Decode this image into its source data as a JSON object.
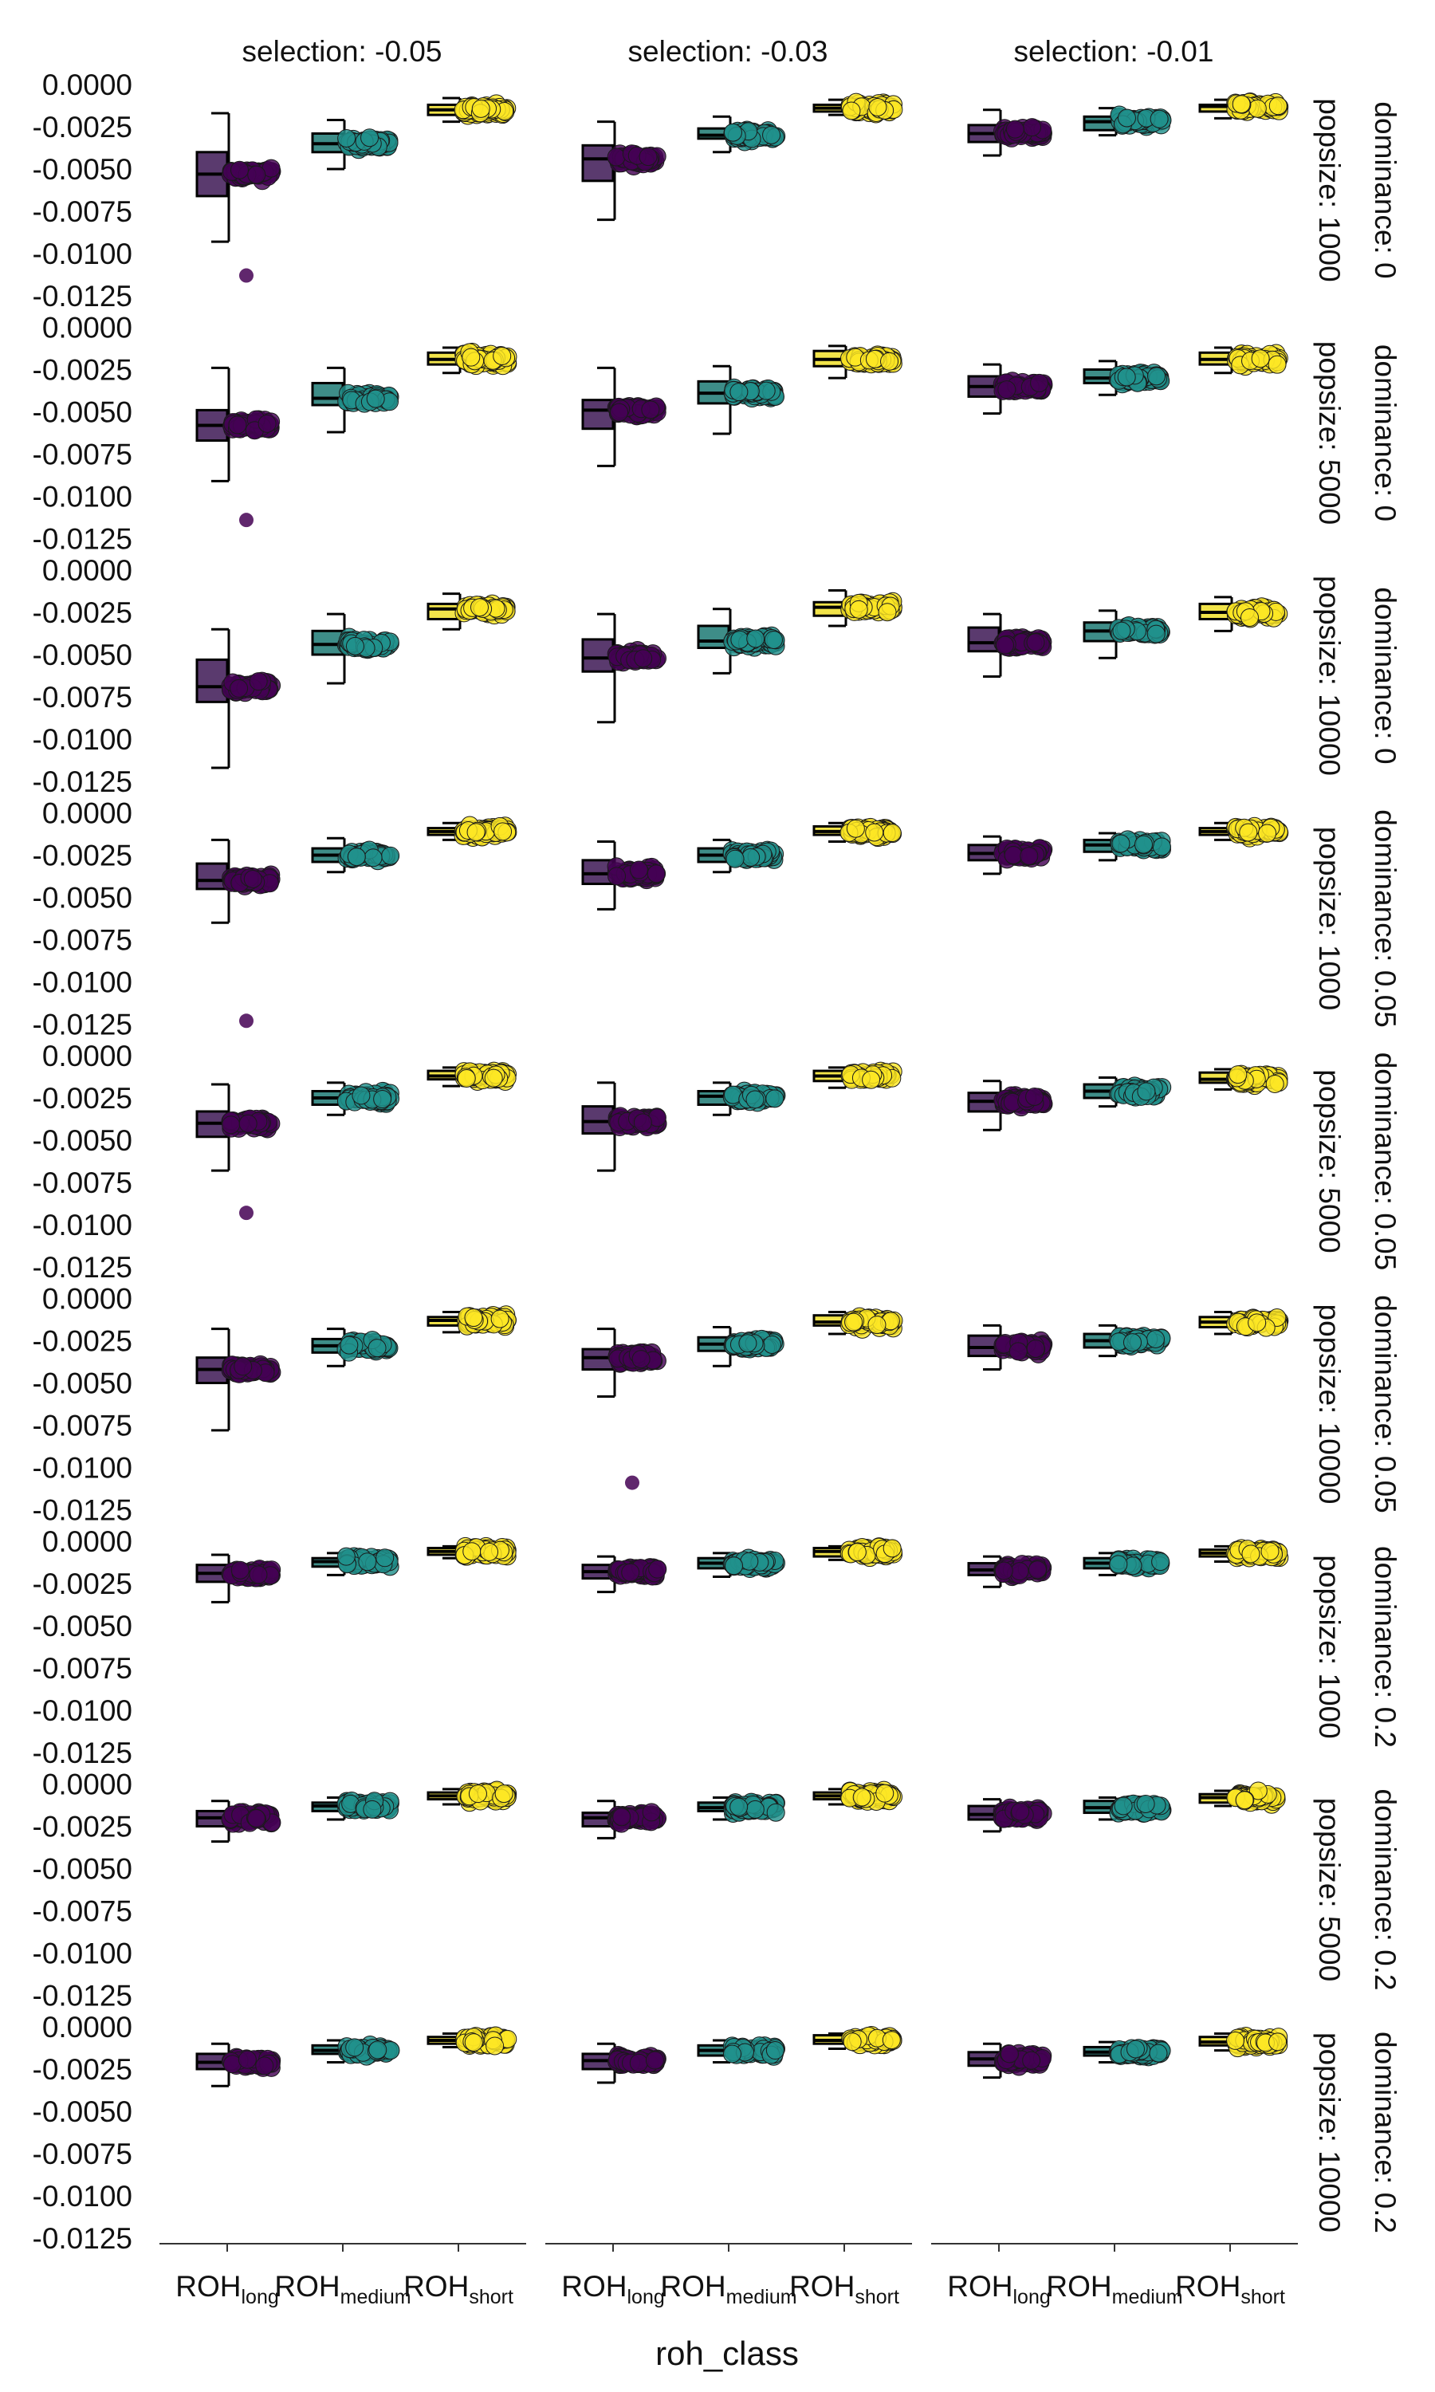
{
  "chart_data": {
    "type": "box-jitter",
    "xlabel": "roh_class",
    "ylabel": "",
    "ylim": [
      -0.0125,
      0.0
    ],
    "y_ticks": [
      "0.0000",
      "-0.0025",
      "-0.0050",
      "-0.0075",
      "-0.0100",
      "-0.0125"
    ],
    "y_tick_values": [
      0.0,
      -0.0025,
      -0.005,
      -0.0075,
      -0.01,
      -0.0125
    ],
    "categories": [
      {
        "main": "ROH",
        "sub": "long"
      },
      {
        "main": "ROH",
        "sub": "medium"
      },
      {
        "main": "ROH",
        "sub": "short"
      }
    ],
    "category_colors": [
      "#440154",
      "#21918c",
      "#fde725"
    ],
    "box_colors": [
      "#5a3a6e",
      "#3e8d88",
      "#f2e44a"
    ],
    "columns": [
      "selection: -0.05",
      "selection: -0.03",
      "selection: -0.01"
    ],
    "rows": [
      {
        "popsize": "popsize: 1000",
        "dominance": "dominance: 0"
      },
      {
        "popsize": "popsize: 5000",
        "dominance": "dominance: 0"
      },
      {
        "popsize": "popsize: 10000",
        "dominance": "dominance: 0"
      },
      {
        "popsize": "popsize: 1000",
        "dominance": "dominance: 0.05"
      },
      {
        "popsize": "popsize: 5000",
        "dominance": "dominance: 0.05"
      },
      {
        "popsize": "popsize: 10000",
        "dominance": "dominance: 0.05"
      },
      {
        "popsize": "popsize: 1000",
        "dominance": "dominance: 0.2"
      },
      {
        "popsize": "popsize: 5000",
        "dominance": "dominance: 0.2"
      },
      {
        "popsize": "popsize: 10000",
        "dominance": "dominance: 0.2"
      }
    ],
    "panels": [
      [
        [
          {
            "q1": -0.0066,
            "med": -0.0053,
            "q3": -0.004,
            "lo": -0.0093,
            "hi": -0.0017,
            "out": [
              -0.0113
            ]
          },
          {
            "q1": -0.004,
            "med": -0.0035,
            "q3": -0.0029,
            "lo": -0.005,
            "hi": -0.0021,
            "out": []
          },
          {
            "q1": -0.0018,
            "med": -0.0015,
            "q3": -0.0012,
            "lo": -0.0022,
            "hi": -0.0008,
            "out": []
          }
        ],
        [
          {
            "q1": -0.0057,
            "med": -0.0044,
            "q3": -0.0036,
            "lo": -0.008,
            "hi": -0.0022,
            "out": []
          },
          {
            "q1": -0.0032,
            "med": -0.003,
            "q3": -0.0026,
            "lo": -0.004,
            "hi": -0.0019,
            "out": []
          },
          {
            "q1": -0.0016,
            "med": -0.0014,
            "q3": -0.0012,
            "lo": -0.0018,
            "hi": -0.0009,
            "out": []
          }
        ],
        [
          {
            "q1": -0.0034,
            "med": -0.0029,
            "q3": -0.0024,
            "lo": -0.0042,
            "hi": -0.0015,
            "out": []
          },
          {
            "q1": -0.0027,
            "med": -0.0022,
            "q3": -0.0019,
            "lo": -0.003,
            "hi": -0.0014,
            "out": []
          },
          {
            "q1": -0.0016,
            "med": -0.0013,
            "q3": -0.0012,
            "lo": -0.002,
            "hi": -0.0009,
            "out": []
          }
        ]
      ],
      [
        [
          {
            "q1": -0.0067,
            "med": -0.0058,
            "q3": -0.0049,
            "lo": -0.0091,
            "hi": -0.0024,
            "out": [
              -0.0114
            ]
          },
          {
            "q1": -0.0046,
            "med": -0.0042,
            "q3": -0.0033,
            "lo": -0.0062,
            "hi": -0.0024,
            "out": []
          },
          {
            "q1": -0.0022,
            "med": -0.0019,
            "q3": -0.0015,
            "lo": -0.0027,
            "hi": -0.0012,
            "out": []
          }
        ],
        [
          {
            "q1": -0.006,
            "med": -0.0049,
            "q3": -0.0043,
            "lo": -0.0082,
            "hi": -0.0024,
            "out": []
          },
          {
            "q1": -0.0045,
            "med": -0.0039,
            "q3": -0.0032,
            "lo": -0.0063,
            "hi": -0.0023,
            "out": []
          },
          {
            "q1": -0.0023,
            "med": -0.0019,
            "q3": -0.0014,
            "lo": -0.003,
            "hi": -0.0011,
            "out": []
          }
        ],
        [
          {
            "q1": -0.0041,
            "med": -0.0035,
            "q3": -0.0029,
            "lo": -0.0051,
            "hi": -0.0022,
            "out": []
          },
          {
            "q1": -0.0033,
            "med": -0.003,
            "q3": -0.0025,
            "lo": -0.004,
            "hi": -0.002,
            "out": []
          },
          {
            "q1": -0.0022,
            "med": -0.0019,
            "q3": -0.0015,
            "lo": -0.0027,
            "hi": -0.0012,
            "out": []
          }
        ]
      ],
      [
        [
          {
            "q1": -0.0078,
            "med": -0.0069,
            "q3": -0.0053,
            "lo": -0.0117,
            "hi": -0.0035,
            "out": []
          },
          {
            "q1": -0.005,
            "med": -0.0044,
            "q3": -0.0036,
            "lo": -0.0067,
            "hi": -0.0026,
            "out": []
          },
          {
            "q1": -0.0029,
            "med": -0.0023,
            "q3": -0.002,
            "lo": -0.0035,
            "hi": -0.0014,
            "out": []
          }
        ],
        [
          {
            "q1": -0.006,
            "med": -0.0052,
            "q3": -0.0041,
            "lo": -0.009,
            "hi": -0.0026,
            "out": []
          },
          {
            "q1": -0.0046,
            "med": -0.0042,
            "q3": -0.0033,
            "lo": -0.0061,
            "hi": -0.0023,
            "out": []
          },
          {
            "q1": -0.0027,
            "med": -0.0022,
            "q3": -0.0019,
            "lo": -0.0033,
            "hi": -0.0012,
            "out": []
          }
        ],
        [
          {
            "q1": -0.0048,
            "med": -0.0043,
            "q3": -0.0034,
            "lo": -0.0063,
            "hi": -0.0026,
            "out": []
          },
          {
            "q1": -0.0042,
            "med": -0.0036,
            "q3": -0.0031,
            "lo": -0.0052,
            "hi": -0.0024,
            "out": []
          },
          {
            "q1": -0.0029,
            "med": -0.0025,
            "q3": -0.002,
            "lo": -0.0036,
            "hi": -0.0016,
            "out": []
          }
        ]
      ],
      [
        [
          {
            "q1": -0.0045,
            "med": -0.004,
            "q3": -0.003,
            "lo": -0.0065,
            "hi": -0.0016,
            "out": [
              -0.0123
            ]
          },
          {
            "q1": -0.0029,
            "med": -0.0025,
            "q3": -0.0021,
            "lo": -0.0035,
            "hi": -0.0015,
            "out": []
          },
          {
            "q1": -0.0013,
            "med": -0.0011,
            "q3": -0.0009,
            "lo": -0.0016,
            "hi": -0.0006,
            "out": []
          }
        ],
        [
          {
            "q1": -0.0042,
            "med": -0.0036,
            "q3": -0.0028,
            "lo": -0.0057,
            "hi": -0.0017,
            "out": []
          },
          {
            "q1": -0.0029,
            "med": -0.0025,
            "q3": -0.0021,
            "lo": -0.0035,
            "hi": -0.0016,
            "out": []
          },
          {
            "q1": -0.0013,
            "med": -0.0011,
            "q3": -0.0008,
            "lo": -0.0017,
            "hi": -0.0006,
            "out": []
          }
        ],
        [
          {
            "q1": -0.0028,
            "med": -0.0024,
            "q3": -0.0019,
            "lo": -0.0036,
            "hi": -0.0014,
            "out": []
          },
          {
            "q1": -0.0023,
            "med": -0.0019,
            "q3": -0.0016,
            "lo": -0.0028,
            "hi": -0.0012,
            "out": []
          },
          {
            "q1": -0.0013,
            "med": -0.0011,
            "q3": -0.0009,
            "lo": -0.0016,
            "hi": -0.0006,
            "out": []
          }
        ]
      ],
      [
        [
          {
            "q1": -0.0048,
            "med": -0.004,
            "q3": -0.0033,
            "lo": -0.0068,
            "hi": -0.0017,
            "out": [
              -0.0093
            ]
          },
          {
            "q1": -0.0029,
            "med": -0.0025,
            "q3": -0.0021,
            "lo": -0.0035,
            "hi": -0.0016,
            "out": []
          },
          {
            "q1": -0.0014,
            "med": -0.0012,
            "q3": -0.0009,
            "lo": -0.0018,
            "hi": -0.0007,
            "out": []
          }
        ],
        [
          {
            "q1": -0.0046,
            "med": -0.0039,
            "q3": -0.003,
            "lo": -0.0068,
            "hi": -0.0016,
            "out": []
          },
          {
            "q1": -0.0029,
            "med": -0.0024,
            "q3": -0.0021,
            "lo": -0.0035,
            "hi": -0.0016,
            "out": []
          },
          {
            "q1": -0.0015,
            "med": -0.0012,
            "q3": -0.0009,
            "lo": -0.0019,
            "hi": -0.0007,
            "out": []
          }
        ],
        [
          {
            "q1": -0.0033,
            "med": -0.0027,
            "q3": -0.0022,
            "lo": -0.0044,
            "hi": -0.0015,
            "out": []
          },
          {
            "q1": -0.0025,
            "med": -0.0021,
            "q3": -0.0017,
            "lo": -0.003,
            "hi": -0.0013,
            "out": []
          },
          {
            "q1": -0.0016,
            "med": -0.0014,
            "q3": -0.001,
            "lo": -0.002,
            "hi": -0.0008,
            "out": []
          }
        ]
      ],
      [
        [
          {
            "q1": -0.005,
            "med": -0.0042,
            "q3": -0.0035,
            "lo": -0.0078,
            "hi": -0.0018,
            "out": []
          },
          {
            "q1": -0.0032,
            "med": -0.0028,
            "q3": -0.0024,
            "lo": -0.004,
            "hi": -0.0018,
            "out": []
          },
          {
            "q1": -0.0016,
            "med": -0.0013,
            "q3": -0.0011,
            "lo": -0.002,
            "hi": -0.0008,
            "out": []
          }
        ],
        [
          {
            "q1": -0.0042,
            "med": -0.0035,
            "q3": -0.003,
            "lo": -0.0058,
            "hi": -0.0018,
            "out": [
              -0.0109
            ]
          },
          {
            "q1": -0.0031,
            "med": -0.0027,
            "q3": -0.0023,
            "lo": -0.004,
            "hi": -0.0017,
            "out": []
          },
          {
            "q1": -0.0016,
            "med": -0.0014,
            "q3": -0.001,
            "lo": -0.0021,
            "hi": -0.0008,
            "out": []
          }
        ],
        [
          {
            "q1": -0.0034,
            "med": -0.0029,
            "q3": -0.0022,
            "lo": -0.0042,
            "hi": -0.0016,
            "out": []
          },
          {
            "q1": -0.0029,
            "med": -0.0025,
            "q3": -0.0021,
            "lo": -0.0034,
            "hi": -0.0016,
            "out": []
          },
          {
            "q1": -0.0017,
            "med": -0.0014,
            "q3": -0.0011,
            "lo": -0.0021,
            "hi": -0.0008,
            "out": []
          }
        ]
      ],
      [
        [
          {
            "q1": -0.0024,
            "med": -0.0019,
            "q3": -0.0014,
            "lo": -0.0036,
            "hi": -0.0008,
            "out": []
          },
          {
            "q1": -0.0015,
            "med": -0.0012,
            "q3": -0.001,
            "lo": -0.002,
            "hi": -0.0007,
            "out": []
          },
          {
            "q1": -0.0008,
            "med": -0.0006,
            "q3": -0.0004,
            "lo": -0.001,
            "hi": -0.0003,
            "out": []
          }
        ],
        [
          {
            "q1": -0.0022,
            "med": -0.0018,
            "q3": -0.0014,
            "lo": -0.003,
            "hi": -0.0009,
            "out": []
          },
          {
            "q1": -0.0016,
            "med": -0.0013,
            "q3": -0.001,
            "lo": -0.0021,
            "hi": -0.0007,
            "out": []
          },
          {
            "q1": -0.0009,
            "med": -0.0006,
            "q3": -0.0004,
            "lo": -0.0011,
            "hi": -0.0003,
            "out": []
          }
        ],
        [
          {
            "q1": -0.002,
            "med": -0.0017,
            "q3": -0.0013,
            "lo": -0.0027,
            "hi": -0.0009,
            "out": []
          },
          {
            "q1": -0.0016,
            "med": -0.0013,
            "q3": -0.001,
            "lo": -0.002,
            "hi": -0.0007,
            "out": []
          },
          {
            "q1": -0.0009,
            "med": -0.0007,
            "q3": -0.0005,
            "lo": -0.0012,
            "hi": -0.0003,
            "out": []
          }
        ]
      ],
      [
        [
          {
            "q1": -0.0025,
            "med": -0.002,
            "q3": -0.0016,
            "lo": -0.0034,
            "hi": -0.001,
            "out": []
          },
          {
            "q1": -0.0016,
            "med": -0.0013,
            "q3": -0.0011,
            "lo": -0.0021,
            "hi": -0.0008,
            "out": []
          },
          {
            "q1": -0.0009,
            "med": -0.0007,
            "q3": -0.0005,
            "lo": -0.0012,
            "hi": -0.0003,
            "out": []
          }
        ],
        [
          {
            "q1": -0.0025,
            "med": -0.002,
            "q3": -0.0017,
            "lo": -0.0032,
            "hi": -0.001,
            "out": []
          },
          {
            "q1": -0.0016,
            "med": -0.0014,
            "q3": -0.0011,
            "lo": -0.0021,
            "hi": -0.0008,
            "out": []
          },
          {
            "q1": -0.0009,
            "med": -0.0007,
            "q3": -0.0005,
            "lo": -0.0012,
            "hi": -0.0003,
            "out": []
          }
        ],
        [
          {
            "q1": -0.0021,
            "med": -0.0018,
            "q3": -0.0013,
            "lo": -0.0028,
            "hi": -0.0009,
            "out": []
          },
          {
            "q1": -0.0017,
            "med": -0.0014,
            "q3": -0.001,
            "lo": -0.0021,
            "hi": -0.0008,
            "out": []
          },
          {
            "q1": -0.0011,
            "med": -0.0008,
            "q3": -0.0006,
            "lo": -0.0013,
            "hi": -0.0004,
            "out": []
          }
        ]
      ],
      [
        [
          {
            "q1": -0.0025,
            "med": -0.0021,
            "q3": -0.0016,
            "lo": -0.0035,
            "hi": -0.001,
            "out": []
          },
          {
            "q1": -0.0016,
            "med": -0.0014,
            "q3": -0.0011,
            "lo": -0.0021,
            "hi": -0.0008,
            "out": []
          },
          {
            "q1": -0.001,
            "med": -0.0008,
            "q3": -0.0006,
            "lo": -0.0012,
            "hi": -0.0004,
            "out": []
          }
        ],
        [
          {
            "q1": -0.0025,
            "med": -0.002,
            "q3": -0.0016,
            "lo": -0.0033,
            "hi": -0.001,
            "out": []
          },
          {
            "q1": -0.0017,
            "med": -0.0014,
            "q3": -0.0011,
            "lo": -0.0021,
            "hi": -0.0008,
            "out": []
          },
          {
            "q1": -0.001,
            "med": -0.0008,
            "q3": -0.0005,
            "lo": -0.0013,
            "hi": -0.0004,
            "out": []
          }
        ],
        [
          {
            "q1": -0.0023,
            "med": -0.0019,
            "q3": -0.0015,
            "lo": -0.003,
            "hi": -0.001,
            "out": []
          },
          {
            "q1": -0.0017,
            "med": -0.0015,
            "q3": -0.0012,
            "lo": -0.0021,
            "hi": -0.0009,
            "out": []
          },
          {
            "q1": -0.0011,
            "med": -0.0009,
            "q3": -0.0006,
            "lo": -0.0014,
            "hi": -0.0004,
            "out": []
          }
        ]
      ]
    ]
  }
}
